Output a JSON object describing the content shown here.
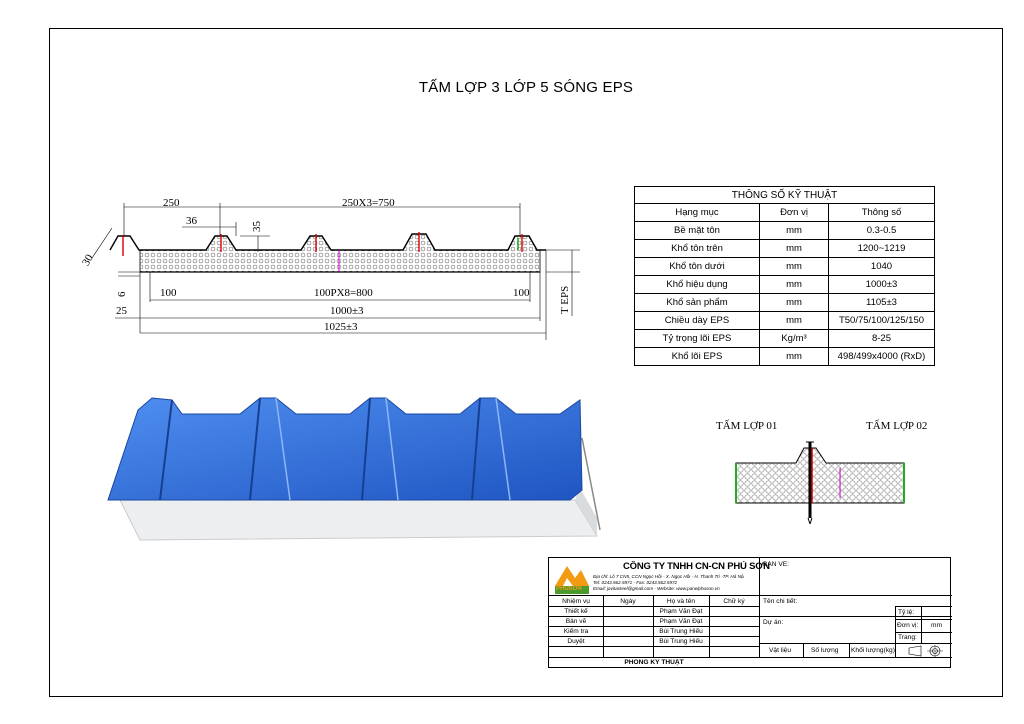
{
  "title": "TẤM LỢP 3 LỚP 5 SÓNG EPS",
  "dimensions": {
    "d250": "250",
    "d750": "250X3=750",
    "d36": "36",
    "d35": "35",
    "d30": "30",
    "d6": "6",
    "d100a": "100",
    "d800": "100PX8=800",
    "d100b": "100",
    "d25": "25",
    "d1000": "1000±3",
    "d1025": "1025±3",
    "teps": "T EPS"
  },
  "spec_table": {
    "title": "THÔNG SỐ KỸ THUẬT",
    "headers": [
      "Hạng mục",
      "Đơn vị",
      "Thông số"
    ],
    "rows": [
      [
        "Bề mặt tôn",
        "mm",
        "0.3-0.5"
      ],
      [
        "Khổ tôn trên",
        "mm",
        "1200~1219"
      ],
      [
        "Khổ tôn dưới",
        "mm",
        "1040"
      ],
      [
        "Khổ hiệu dụng",
        "mm",
        "1000±3"
      ],
      [
        "Khổ sản phẩm",
        "mm",
        "1105±3"
      ],
      [
        "Chiều dày EPS",
        "mm",
        "T50/75/100/125/150"
      ],
      [
        "Tỷ trọng lõi EPS",
        "Kg/m³",
        "8-25"
      ],
      [
        "Khổ lõi EPS",
        "mm",
        "498/499x4000 (RxD)"
      ]
    ]
  },
  "joint": {
    "label1": "TẤM LỢP 01",
    "label2": "TẤM LỢP 02"
  },
  "title_block": {
    "company": "CÔNG TY TNHH CN-CN PHÚ SƠN",
    "address": "Địa chỉ: Lô 7 CN5, CCN Ngọc Hồi - X. Ngọc Hồi - H. Thanh Trì -TP. Hà Nội",
    "tel": "Tel: 0243.562.5971  -  Fax: 0243.562.5972",
    "email": "Email: javitasteel@gmail.com  -  Website: www.panelphuson.vn",
    "logo_text": "PHUSON",
    "ban_ve": "BẢN VẼ:",
    "ten_chi_tiet": "Tên chi tiết:",
    "du_an": "Dự án:",
    "headers": [
      "Nhiệm vụ",
      "Ngày",
      "Họ và tên",
      "Chữ ký"
    ],
    "rows": [
      [
        "Thiết kế",
        "",
        "Phạm Văn Đạt",
        ""
      ],
      [
        "Bản vẽ",
        "",
        "Phạm Văn Đạt",
        ""
      ],
      [
        "Kiểm tra",
        "",
        "Bùi Trung Hiếu",
        ""
      ],
      [
        "Duyệt",
        "",
        "Bùi Trung Hiếu",
        ""
      ]
    ],
    "dept": "PHÒNG KỸ THUẬT",
    "ty_le": "Tỷ lệ:",
    "don_vi": "Đơn vị:",
    "don_vi_value": "mm",
    "trang": "Trang:",
    "vat_lieu": "Vật liệu",
    "so_luong": "Số lượng",
    "khoi_luong": "Khối lượng(kg)"
  },
  "colors": {
    "panel_blue": "#2f6fd6",
    "panel_blue_dark": "#1d4fb0",
    "foam": "#eef0f2",
    "logo_orange": "#f39a12",
    "logo_green": "#4a9a2c"
  }
}
